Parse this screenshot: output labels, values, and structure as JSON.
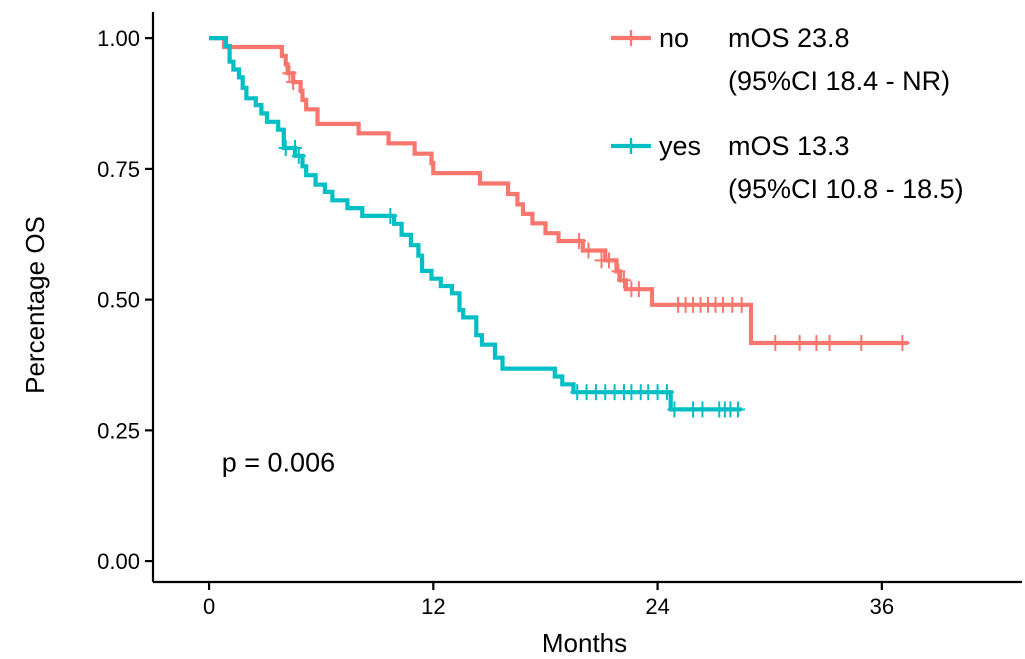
{
  "chart_data": {
    "type": "line",
    "title": "",
    "xlabel": "Months",
    "ylabel": "Percentage OS",
    "xlim": [
      -3,
      43.5
    ],
    "ylim": [
      -0.04,
      1.05
    ],
    "x_ticks": [
      0,
      12,
      24,
      36
    ],
    "x_tick_labels": [
      "0",
      "12",
      "24",
      "36"
    ],
    "y_ticks": [
      0,
      0.25,
      0.5,
      0.75,
      1.0
    ],
    "y_tick_labels": [
      "0.00",
      "0.25",
      "0.50",
      "0.75",
      "1.00"
    ],
    "grid": false,
    "legend_position": "top-right",
    "annotation": "p = 0.006",
    "series": [
      {
        "name": "no",
        "color": "#F8766D",
        "note_line1": "mOS 23.8",
        "note_line2": "(95%CI 18.4 - NR)",
        "steps": [
          [
            0,
            1.0
          ],
          [
            0.8,
            0.983
          ],
          [
            3.9,
            0.966
          ],
          [
            4.1,
            0.95
          ],
          [
            4.2,
            0.933
          ],
          [
            4.5,
            0.916
          ],
          [
            4.9,
            0.899
          ],
          [
            5.0,
            0.882
          ],
          [
            5.2,
            0.864
          ],
          [
            5.8,
            0.836
          ],
          [
            8.0,
            0.818
          ],
          [
            9.6,
            0.799
          ],
          [
            11.0,
            0.779
          ],
          [
            11.9,
            0.761
          ],
          [
            12.0,
            0.742
          ],
          [
            14.5,
            0.722
          ],
          [
            16.0,
            0.702
          ],
          [
            16.5,
            0.682
          ],
          [
            16.8,
            0.664
          ],
          [
            17.3,
            0.646
          ],
          [
            18.0,
            0.627
          ],
          [
            18.7,
            0.612
          ],
          [
            20.0,
            0.594
          ],
          [
            21.2,
            0.575
          ],
          [
            21.8,
            0.554
          ],
          [
            22.0,
            0.537
          ],
          [
            22.3,
            0.52
          ],
          [
            23.7,
            0.49
          ],
          [
            29.0,
            0.417
          ],
          [
            37.4,
            0.417
          ]
        ],
        "censored": [
          [
            4.3,
            0.933
          ],
          [
            4.5,
            0.916
          ],
          [
            19.8,
            0.612
          ],
          [
            20.3,
            0.594
          ],
          [
            21.0,
            0.575
          ],
          [
            21.4,
            0.575
          ],
          [
            21.9,
            0.554
          ],
          [
            22.2,
            0.537
          ],
          [
            22.6,
            0.52
          ],
          [
            23.0,
            0.52
          ],
          [
            25.1,
            0.49
          ],
          [
            25.5,
            0.49
          ],
          [
            25.9,
            0.49
          ],
          [
            26.3,
            0.49
          ],
          [
            26.7,
            0.49
          ],
          [
            27.1,
            0.49
          ],
          [
            27.5,
            0.49
          ],
          [
            28.0,
            0.49
          ],
          [
            28.5,
            0.49
          ],
          [
            30.3,
            0.417
          ],
          [
            31.6,
            0.417
          ],
          [
            32.5,
            0.417
          ],
          [
            33.2,
            0.417
          ],
          [
            34.9,
            0.417
          ],
          [
            37.1,
            0.417
          ]
        ]
      },
      {
        "name": "yes",
        "color": "#00BFC4",
        "note_line1": "mOS 13.3",
        "note_line2": "(95%CI 10.8 - 18.5)",
        "steps": [
          [
            0,
            1.0
          ],
          [
            0.9,
            0.985
          ],
          [
            1.1,
            0.955
          ],
          [
            1.3,
            0.94
          ],
          [
            1.6,
            0.925
          ],
          [
            1.8,
            0.905
          ],
          [
            2.0,
            0.885
          ],
          [
            2.5,
            0.872
          ],
          [
            2.8,
            0.856
          ],
          [
            3.1,
            0.84
          ],
          [
            3.7,
            0.825
          ],
          [
            4.0,
            0.79
          ],
          [
            4.6,
            0.775
          ],
          [
            5.0,
            0.755
          ],
          [
            5.2,
            0.738
          ],
          [
            5.7,
            0.72
          ],
          [
            6.2,
            0.706
          ],
          [
            6.6,
            0.69
          ],
          [
            7.4,
            0.675
          ],
          [
            8.2,
            0.66
          ],
          [
            9.9,
            0.645
          ],
          [
            10.3,
            0.624
          ],
          [
            10.8,
            0.604
          ],
          [
            11.2,
            0.584
          ],
          [
            11.4,
            0.555
          ],
          [
            11.9,
            0.54
          ],
          [
            12.4,
            0.526
          ],
          [
            13.0,
            0.512
          ],
          [
            13.4,
            0.48
          ],
          [
            13.6,
            0.466
          ],
          [
            14.3,
            0.432
          ],
          [
            14.6,
            0.414
          ],
          [
            15.3,
            0.389
          ],
          [
            15.7,
            0.368
          ],
          [
            18.5,
            0.353
          ],
          [
            18.9,
            0.338
          ],
          [
            19.5,
            0.323
          ],
          [
            24.7,
            0.29
          ],
          [
            28.5,
            0.29
          ]
        ],
        "censored": [
          [
            4.1,
            0.79
          ],
          [
            4.6,
            0.79
          ],
          [
            4.8,
            0.775
          ],
          [
            9.7,
            0.66
          ],
          [
            19.7,
            0.323
          ],
          [
            20.2,
            0.323
          ],
          [
            20.7,
            0.323
          ],
          [
            21.2,
            0.323
          ],
          [
            21.7,
            0.323
          ],
          [
            22.2,
            0.323
          ],
          [
            22.6,
            0.323
          ],
          [
            23.1,
            0.323
          ],
          [
            23.5,
            0.323
          ],
          [
            24.0,
            0.323
          ],
          [
            24.5,
            0.323
          ],
          [
            24.9,
            0.29
          ],
          [
            25.9,
            0.29
          ],
          [
            26.4,
            0.29
          ],
          [
            27.3,
            0.29
          ],
          [
            27.6,
            0.29
          ],
          [
            27.9,
            0.29
          ],
          [
            28.3,
            0.29
          ]
        ]
      }
    ]
  }
}
